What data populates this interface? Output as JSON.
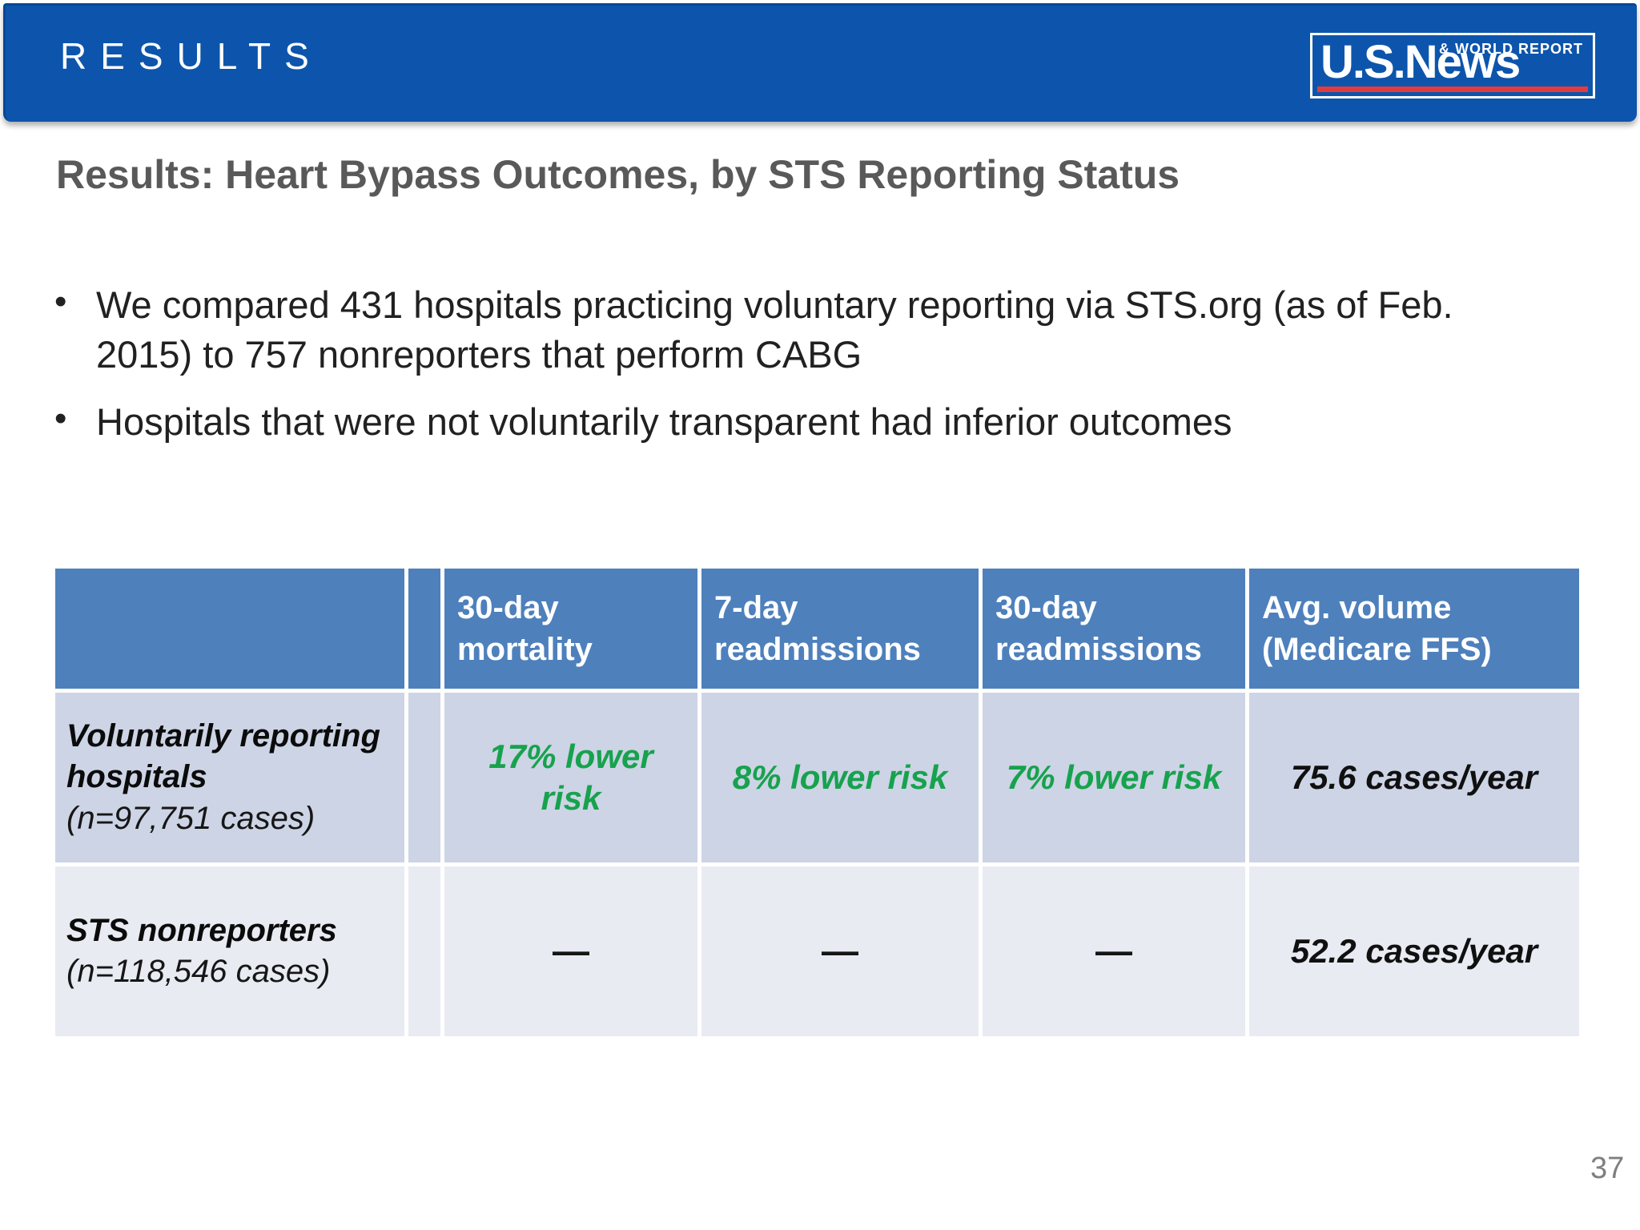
{
  "banner": {
    "title": "RESULTS",
    "logo": {
      "main": "U.S.News",
      "tagline": "& WORLD REPORT"
    }
  },
  "content": {
    "heading": "Results: Heart Bypass Outcomes, by STS Reporting Status",
    "bullets": [
      "We compared 431 hospitals practicing voluntary reporting via STS.org (as of Feb. 2015) to 757 nonreporters that perform CABG",
      "Hospitals that were not voluntarily transparent had inferior outcomes"
    ]
  },
  "table": {
    "headers": [
      "",
      "30-day mortality",
      "7-day readmissions",
      "30-day readmissions",
      "Avg. volume (Medicare FFS)"
    ],
    "rows": [
      {
        "label": "Voluntarily reporting hospitals",
        "sublabel": "(n=97,751 cases)",
        "values": [
          "17% lower risk",
          "8% lower risk",
          "7% lower risk",
          "75.6 cases/year"
        ]
      },
      {
        "label": "STS nonreporters",
        "sublabel": "(n=118,546 cases)",
        "values": [
          "—",
          "—",
          "—",
          "52.2 cases/year"
        ]
      }
    ]
  },
  "page_number": "37",
  "colors": {
    "banner_blue": "#0D55AC",
    "table_header_blue": "#4E80BC",
    "row1_bg": "#CDD4E5",
    "row2_bg": "#E9EBF3",
    "positive_green": "#17A24E",
    "logo_red": "#E23B3F",
    "heading_gray": "#595959"
  }
}
